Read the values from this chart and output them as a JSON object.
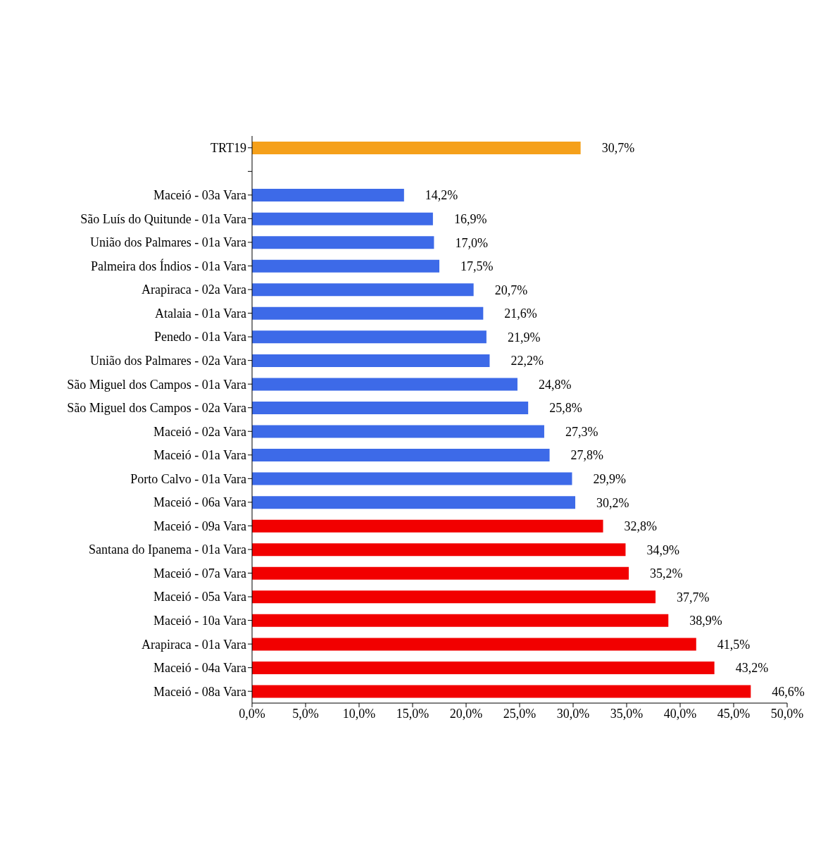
{
  "chart_data": {
    "type": "bar",
    "orientation": "horizontal",
    "categories": [
      "TRT19",
      null,
      "Maceió  - 03a Vara",
      "São Luís do Quitunde  - 01a Vara",
      "União dos Palmares  - 01a Vara",
      "Palmeira dos Índios  - 01a Vara",
      "Arapiraca  - 02a Vara",
      "Atalaia  - 01a Vara",
      "Penedo  - 01a Vara",
      "União dos Palmares  - 02a Vara",
      "São Miguel dos Campos  - 01a Vara",
      "São Miguel dos Campos  - 02a Vara",
      "Maceió  - 02a Vara",
      "Maceió  - 01a Vara",
      "Porto Calvo  - 01a Vara",
      "Maceió  - 06a Vara",
      "Maceió  - 09a Vara",
      "Santana do Ipanema  - 01a Vara",
      "Maceió  - 07a Vara",
      "Maceió  - 05a Vara",
      "Maceió  - 10a Vara",
      "Arapiraca  - 01a Vara",
      "Maceió  - 04a Vara",
      "Maceió  - 08a Vara"
    ],
    "values": [
      30.7,
      null,
      14.2,
      16.9,
      17.0,
      17.5,
      20.7,
      21.6,
      21.9,
      22.2,
      24.8,
      25.8,
      27.3,
      27.8,
      29.9,
      30.2,
      32.8,
      34.9,
      35.2,
      37.7,
      38.9,
      41.5,
      43.2,
      46.6
    ],
    "value_labels": [
      "30,7%",
      null,
      "14,2%",
      "16,9%",
      "17,0%",
      "17,5%",
      "20,7%",
      "21,6%",
      "21,9%",
      "22,2%",
      "24,8%",
      "25,8%",
      "27,3%",
      "27,8%",
      "29,9%",
      "30,2%",
      "32,8%",
      "34,9%",
      "35,2%",
      "37,7%",
      "38,9%",
      "41,5%",
      "43,2%",
      "46,6%"
    ],
    "colors": [
      "#f5a01a",
      null,
      "#3d6ae8",
      "#3d6ae8",
      "#3d6ae8",
      "#3d6ae8",
      "#3d6ae8",
      "#3d6ae8",
      "#3d6ae8",
      "#3d6ae8",
      "#3d6ae8",
      "#3d6ae8",
      "#3d6ae8",
      "#3d6ae8",
      "#3d6ae8",
      "#3d6ae8",
      "#f20000",
      "#f20000",
      "#f20000",
      "#f20000",
      "#f20000",
      "#f20000",
      "#f20000",
      "#f20000"
    ],
    "xlim": [
      0,
      50
    ],
    "xticks": [
      {
        "value": 0,
        "label": "0,0%"
      },
      {
        "value": 5,
        "label": "5,0%"
      },
      {
        "value": 10,
        "label": "10,0%"
      },
      {
        "value": 15,
        "label": "15,0%"
      },
      {
        "value": 20,
        "label": "20,0%"
      },
      {
        "value": 25,
        "label": "25,0%"
      },
      {
        "value": 30,
        "label": "30,0%"
      },
      {
        "value": 35,
        "label": "35,0%"
      },
      {
        "value": 40,
        "label": "40,0%"
      },
      {
        "value": 45,
        "label": "45,0%"
      },
      {
        "value": 50,
        "label": "50,0%"
      }
    ],
    "grid": false,
    "legend": false
  }
}
